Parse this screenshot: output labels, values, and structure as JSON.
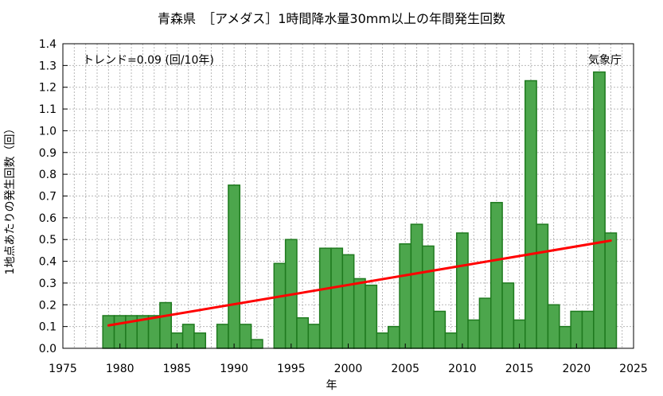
{
  "chart_data": {
    "type": "bar",
    "title": "青森県　［アメダス］1時間降水量30mm以上の年間発生回数",
    "xlabel": "年",
    "ylabel": "1地点あたりの発生回数（回）",
    "trend_text": "トレンド=0.09 (回/10年)",
    "source_text": "気象庁",
    "xlim": [
      1975,
      2025
    ],
    "ylim": [
      0,
      1.4
    ],
    "x_ticks": [
      1975,
      1980,
      1985,
      1990,
      1995,
      2000,
      2005,
      2010,
      2015,
      2020,
      2025
    ],
    "y_ticks": [
      "0.0",
      "0.1",
      "0.2",
      "0.3",
      "0.4",
      "0.5",
      "0.6",
      "0.7",
      "0.8",
      "0.9",
      "1.0",
      "1.1",
      "1.2",
      "1.3",
      "1.4"
    ],
    "grid": true,
    "x": [
      1979,
      1980,
      1981,
      1982,
      1983,
      1984,
      1985,
      1986,
      1987,
      1988,
      1989,
      1990,
      1991,
      1992,
      1993,
      1994,
      1995,
      1996,
      1997,
      1998,
      1999,
      2000,
      2001,
      2002,
      2003,
      2004,
      2005,
      2006,
      2007,
      2008,
      2009,
      2010,
      2011,
      2012,
      2013,
      2014,
      2015,
      2016,
      2017,
      2018,
      2019,
      2020,
      2021,
      2022,
      2023
    ],
    "values": [
      0.15,
      0.15,
      0.15,
      0.15,
      0.15,
      0.21,
      0.07,
      0.11,
      0.07,
      0.0,
      0.11,
      0.75,
      0.11,
      0.04,
      0.0,
      0.39,
      0.5,
      0.14,
      0.11,
      0.46,
      0.46,
      0.43,
      0.32,
      0.29,
      0.07,
      0.1,
      0.48,
      0.57,
      0.47,
      0.17,
      0.07,
      0.53,
      0.13,
      0.23,
      0.67,
      0.3,
      0.13,
      1.23,
      0.57,
      0.2,
      0.1,
      0.17,
      0.17,
      1.27,
      0.53
    ],
    "trend": {
      "x": [
        1979,
        2023
      ],
      "y": [
        0.105,
        0.495
      ]
    },
    "colors": {
      "bar_fill": "#4ca64c",
      "bar_stroke": "#1f7a1f",
      "trend": "#ff0000",
      "grid": "#b8b8b8"
    }
  }
}
